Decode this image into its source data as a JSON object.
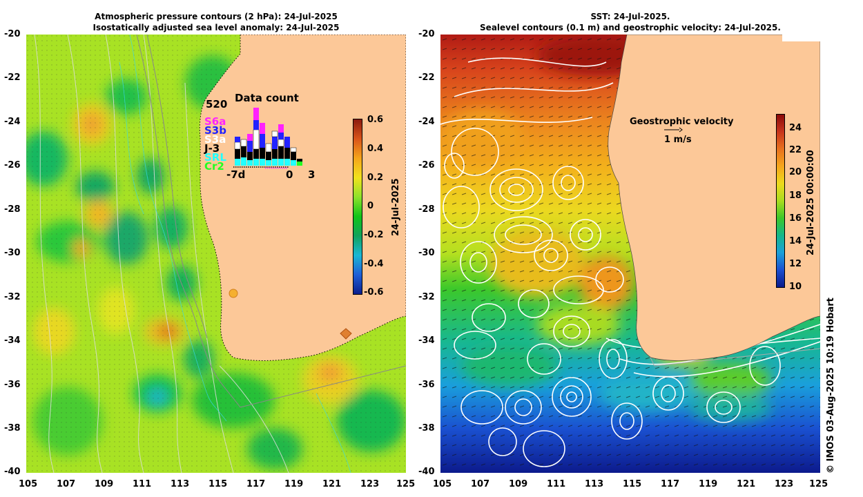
{
  "left_map": {
    "title_line1": "Atmospheric pressure contours (2 hPa): 24-Jul-2025",
    "title_line2": "Isostatically adjusted sea level anomaly: 24-Jul-2025",
    "colorbar": {
      "label": "24-Jul-2025",
      "ticks": [
        "0.6",
        "0.4",
        "0.2",
        "0",
        "-0.2",
        "-0.4",
        "-0.6"
      ],
      "colors": [
        "#8b1a0e",
        "#d9541a",
        "#f5a51b",
        "#f1e21c",
        "#8ee22b",
        "#10c418",
        "#12a25b",
        "#1bb7d4",
        "#1f5fd6",
        "#0b1f8c"
      ]
    },
    "inset": {
      "title": "Data count",
      "max_count": "520",
      "x_labels": [
        "-7d",
        "0",
        "3"
      ],
      "legend": [
        {
          "name": "S6a",
          "color": "#ff22ff"
        },
        {
          "name": "S3b",
          "color": "#2222ff"
        },
        {
          "name": "S3a",
          "color": "#ffffff"
        },
        {
          "name": "J-3",
          "color": "#000000"
        },
        {
          "name": "SRL",
          "color": "#22ffff"
        },
        {
          "name": "Cr2",
          "color": "#22ff22"
        }
      ]
    }
  },
  "right_map": {
    "title_line1": "SST: 24-Jul-2025.",
    "title_line2": "Sealevel contours (0.1 m) and geostrophic velocity: 24-Jul-2025.",
    "velocity_title": "Geostrophic velocity",
    "velocity_scale": "1 m/s",
    "colorbar": {
      "label": "24-Jul-2025 00:00:00",
      "ticks": [
        "24",
        "22",
        "20",
        "18",
        "16",
        "14",
        "12",
        "10"
      ],
      "colors": [
        "#8b0a0a",
        "#c8351c",
        "#e8721e",
        "#f5a61c",
        "#ecd91d",
        "#a9dc1f",
        "#3cc72a",
        "#14b78a",
        "#1aa0d9",
        "#1a4fd1",
        "#0b1a8a"
      ]
    }
  },
  "axes": {
    "lat_ticks": [
      "-20",
      "-22",
      "-24",
      "-26",
      "-28",
      "-30",
      "-32",
      "-34",
      "-36",
      "-38",
      "-40"
    ],
    "lon_ticks": [
      "105",
      "107",
      "109",
      "111",
      "113",
      "115",
      "117",
      "119",
      "121",
      "123",
      "125"
    ]
  },
  "credit": "© IMOS 03-Aug-2025 10:19 Hobart",
  "colors": {
    "land": "#fcc898",
    "coast": "#888888"
  }
}
